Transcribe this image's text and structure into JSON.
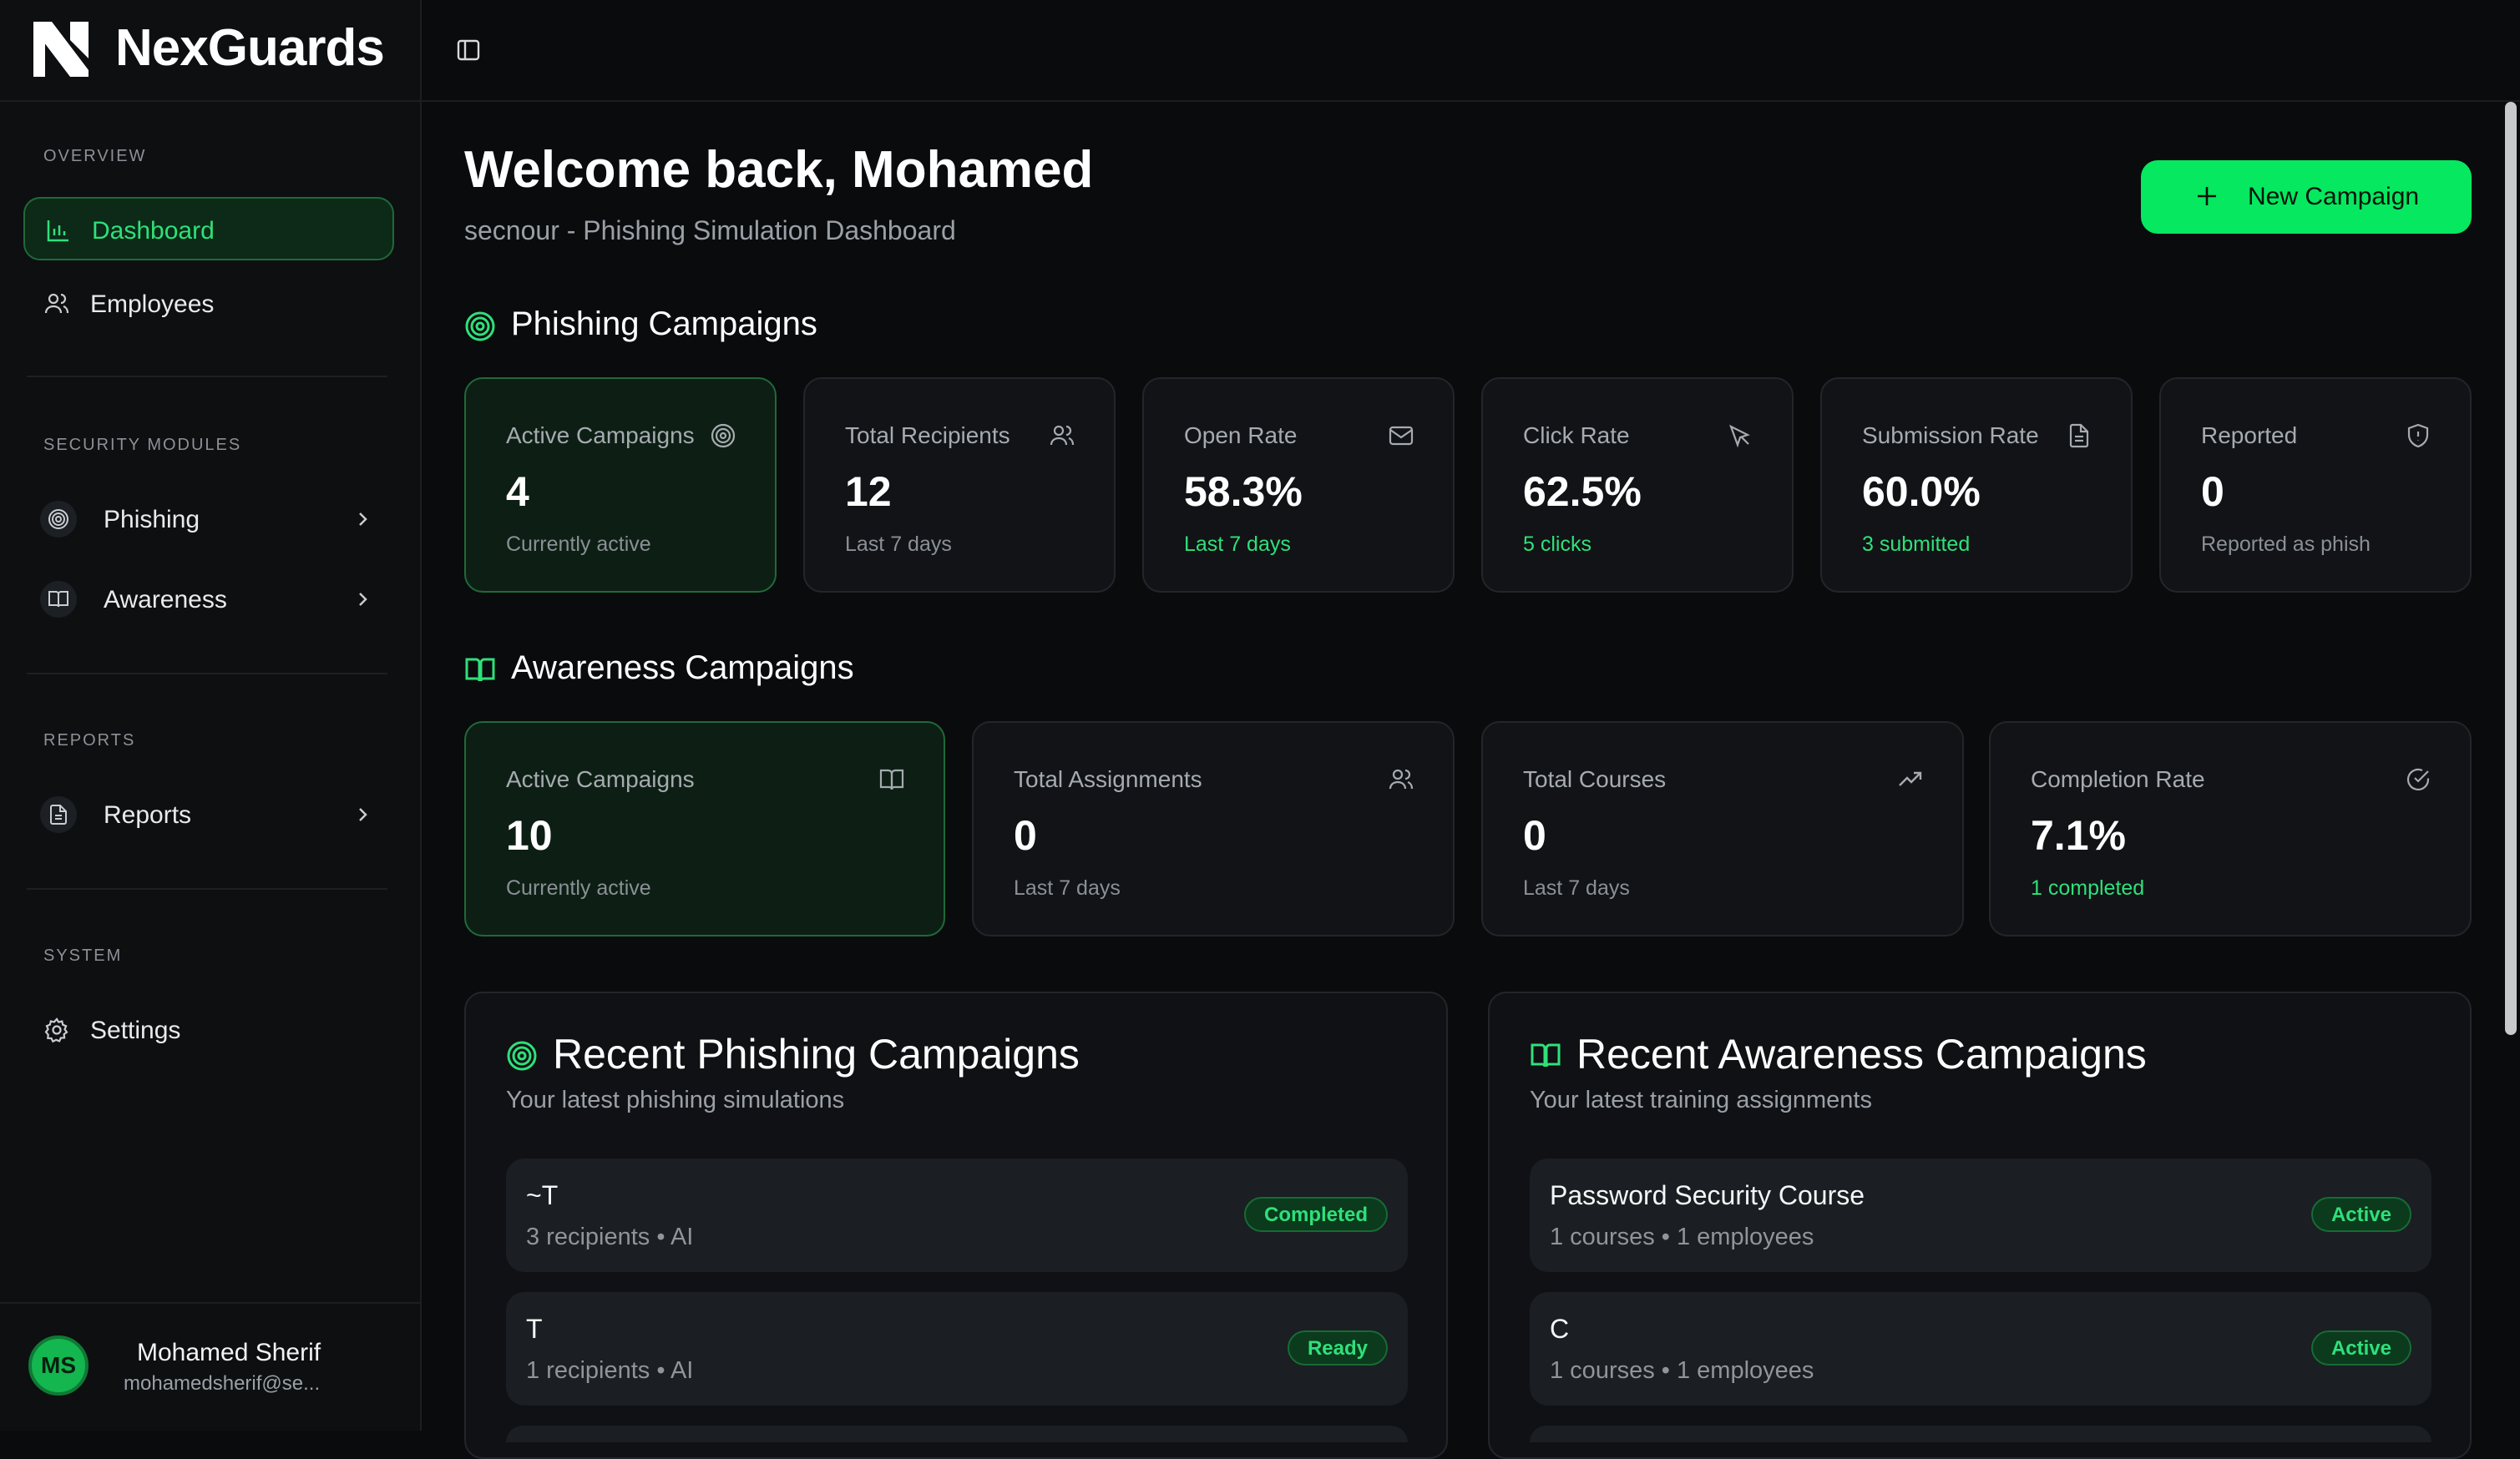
{
  "brand": {
    "name": "NexGuards"
  },
  "sidebar": {
    "sections": {
      "overview": "OVERVIEW",
      "security": "SECURITY MODULES",
      "reports": "REPORTS",
      "system": "SYSTEM"
    },
    "items": [
      {
        "label": "Dashboard",
        "icon": "bar-chart-icon",
        "active": true
      },
      {
        "label": "Employees",
        "icon": "users-icon"
      },
      {
        "label": "Phishing",
        "icon": "target-icon"
      },
      {
        "label": "Awareness",
        "icon": "book-icon"
      },
      {
        "label": "Reports",
        "icon": "document-icon"
      },
      {
        "label": "Settings",
        "icon": "gear-icon"
      }
    ],
    "user": {
      "initials": "MS",
      "name": "Mohamed Sherif",
      "email": "mohamedsherif@se..."
    }
  },
  "header": {
    "welcome": "Welcome back, Mohamed",
    "subtitle": "secnour - Phishing Simulation Dashboard",
    "new_campaign": "New Campaign"
  },
  "phishing": {
    "title": "Phishing Campaigns",
    "cards": [
      {
        "title": "Active Campaigns",
        "value": "4",
        "sub": "Currently active",
        "icon": "target-icon"
      },
      {
        "title": "Total Recipients",
        "value": "12",
        "sub": "Last 7 days",
        "icon": "users-icon"
      },
      {
        "title": "Open Rate",
        "value": "58.3%",
        "sub": "Last 7 days",
        "icon": "mail-icon"
      },
      {
        "title": "Click Rate",
        "value": "62.5%",
        "sub": "5 clicks",
        "icon": "cursor-icon"
      },
      {
        "title": "Submission Rate",
        "value": "60.0%",
        "sub": "3 submitted",
        "icon": "document-icon"
      },
      {
        "title": "Reported",
        "value": "0",
        "sub": "Reported as phish",
        "icon": "shield-icon"
      }
    ]
  },
  "awareness": {
    "title": "Awareness Campaigns",
    "cards": [
      {
        "title": "Active Campaigns",
        "value": "10",
        "sub": "Currently active",
        "icon": "book-icon"
      },
      {
        "title": "Total Assignments",
        "value": "0",
        "sub": "Last 7 days",
        "icon": "users-icon"
      },
      {
        "title": "Total Courses",
        "value": "0",
        "sub": "Last 7 days",
        "icon": "trend-up-icon"
      },
      {
        "title": "Completion Rate",
        "value": "7.1%",
        "sub": "1 completed",
        "icon": "check-circle-icon"
      }
    ]
  },
  "recent_phishing": {
    "title": "Recent Phishing Campaigns",
    "subtitle": "Your latest phishing simulations",
    "rows": [
      {
        "name": "~T",
        "meta": "3 recipients • AI",
        "status": "Completed"
      },
      {
        "name": "T",
        "meta": "1 recipients • AI",
        "status": "Ready"
      }
    ]
  },
  "recent_awareness": {
    "title": "Recent Awareness Campaigns",
    "subtitle": "Your latest training assignments",
    "rows": [
      {
        "name": "Password Security Course",
        "meta": "1 courses • 1 employees",
        "status": "Active"
      },
      {
        "name": "C",
        "meta": "1 courses • 1 employees",
        "status": "Active"
      }
    ]
  },
  "colors": {
    "accent": "#06e85f",
    "background": "#0a0b0d",
    "card": "#111316"
  }
}
